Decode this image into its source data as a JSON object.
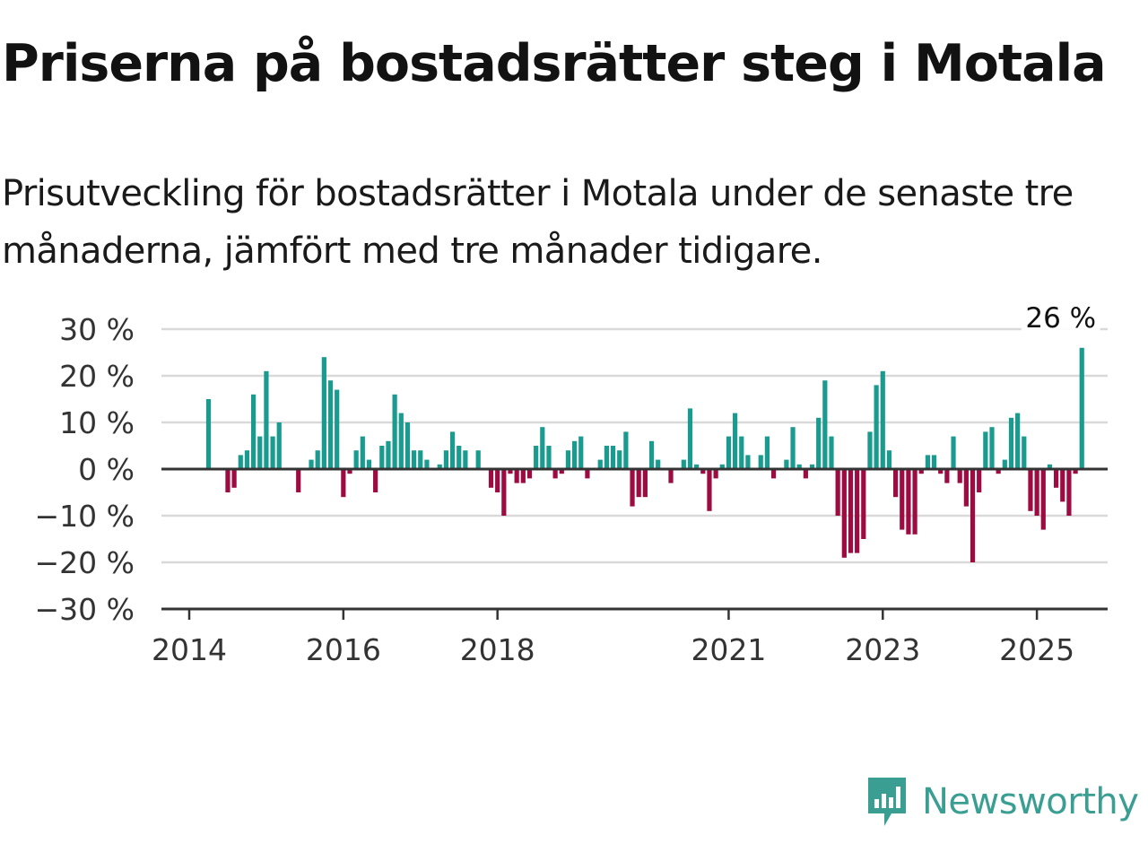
{
  "title": "Priserna på bostadsrätter steg i Motala",
  "subtitle": "Prisutveckling för bostadsrätter i Motala under de senaste tre månaderna, jämfört med tre månader tidigare.",
  "brand": {
    "name": "Newsworthy",
    "icon": "chart-bubble-icon"
  },
  "colors": {
    "positive": "#1a9b8f",
    "negative": "#9e0b41",
    "grid": "#d9d9d9",
    "axis": "#333333",
    "brand": "#3a9e93"
  },
  "chart_data": {
    "type": "bar",
    "title": "Priserna på bostadsrätter steg i Motala",
    "ylabel": "",
    "xlabel": "",
    "ylim": [
      -30,
      30
    ],
    "yticks": [
      30,
      20,
      10,
      0,
      -10,
      -20,
      -30
    ],
    "ytick_labels": [
      "30 %",
      "20 %",
      "10 %",
      "0 %",
      "−10 %",
      "−20 %",
      "−30 %"
    ],
    "xtick_labels": [
      "2014",
      "2016",
      "2018",
      "2021",
      "2023",
      "2025"
    ],
    "xtick_month_index": [
      0,
      24,
      48,
      84,
      108,
      132
    ],
    "grid": true,
    "start_month": "2014-01",
    "annotation": {
      "label": "26 %",
      "month_index": 136
    },
    "values": [
      null,
      null,
      null,
      15,
      null,
      null,
      -5,
      -4,
      3,
      4,
      16,
      7,
      21,
      7,
      10,
      null,
      null,
      -5,
      null,
      2,
      4,
      24,
      19,
      17,
      -6,
      -1,
      4,
      7,
      2,
      -5,
      5,
      6,
      16,
      12,
      10,
      4,
      4,
      2,
      null,
      1,
      4,
      8,
      5,
      4,
      null,
      4,
      null,
      -4,
      -5,
      -10,
      -1,
      -3,
      -3,
      -2,
      5,
      9,
      5,
      -2,
      -1,
      4,
      6,
      7,
      -2,
      null,
      2,
      5,
      5,
      4,
      8,
      -8,
      -6,
      -6,
      6,
      2,
      null,
      -3,
      null,
      2,
      13,
      1,
      -1,
      -9,
      -2,
      1,
      7,
      12,
      7,
      3,
      null,
      3,
      7,
      -2,
      null,
      2,
      9,
      1,
      -2,
      1,
      11,
      19,
      7,
      -10,
      -19,
      -18,
      -18,
      -15,
      8,
      18,
      21,
      4,
      -6,
      -13,
      -14,
      -14,
      -1,
      3,
      3,
      -1,
      -3,
      7,
      -3,
      -8,
      -20,
      -5,
      8,
      9,
      -1,
      2,
      11,
      12,
      7,
      -9,
      -10,
      -13,
      1,
      -4,
      -7,
      -10,
      -1,
      26
    ]
  }
}
